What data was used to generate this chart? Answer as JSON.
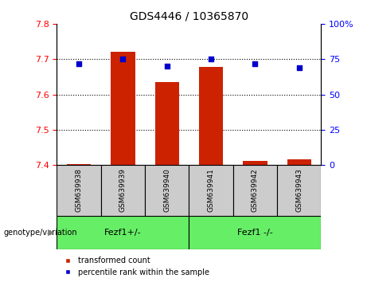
{
  "title": "GDS4446 / 10365870",
  "samples": [
    "GSM639938",
    "GSM639939",
    "GSM639940",
    "GSM639941",
    "GSM639942",
    "GSM639943"
  ],
  "transformed_count": [
    7.402,
    7.722,
    7.635,
    7.678,
    7.412,
    7.415
  ],
  "percentile_rank": [
    72,
    75,
    70,
    75,
    72,
    69
  ],
  "left_ylim": [
    7.4,
    7.8
  ],
  "right_ylim": [
    0,
    100
  ],
  "left_yticks": [
    7.4,
    7.5,
    7.6,
    7.7,
    7.8
  ],
  "right_yticks": [
    0,
    25,
    50,
    75,
    100
  ],
  "bar_color": "#cc2200",
  "dot_color": "#0000cc",
  "bar_bottom": 7.4,
  "group1_label": "Fezf1+/-",
  "group2_label": "Fezf1 -/-",
  "group1_indices": [
    0,
    1,
    2
  ],
  "group2_indices": [
    3,
    4,
    5
  ],
  "group_bg_color": "#66ee66",
  "sample_bg_color": "#cccccc",
  "legend_red_label": "transformed count",
  "legend_blue_label": "percentile rank within the sample",
  "figsize": [
    4.61,
    3.54
  ],
  "dpi": 100
}
